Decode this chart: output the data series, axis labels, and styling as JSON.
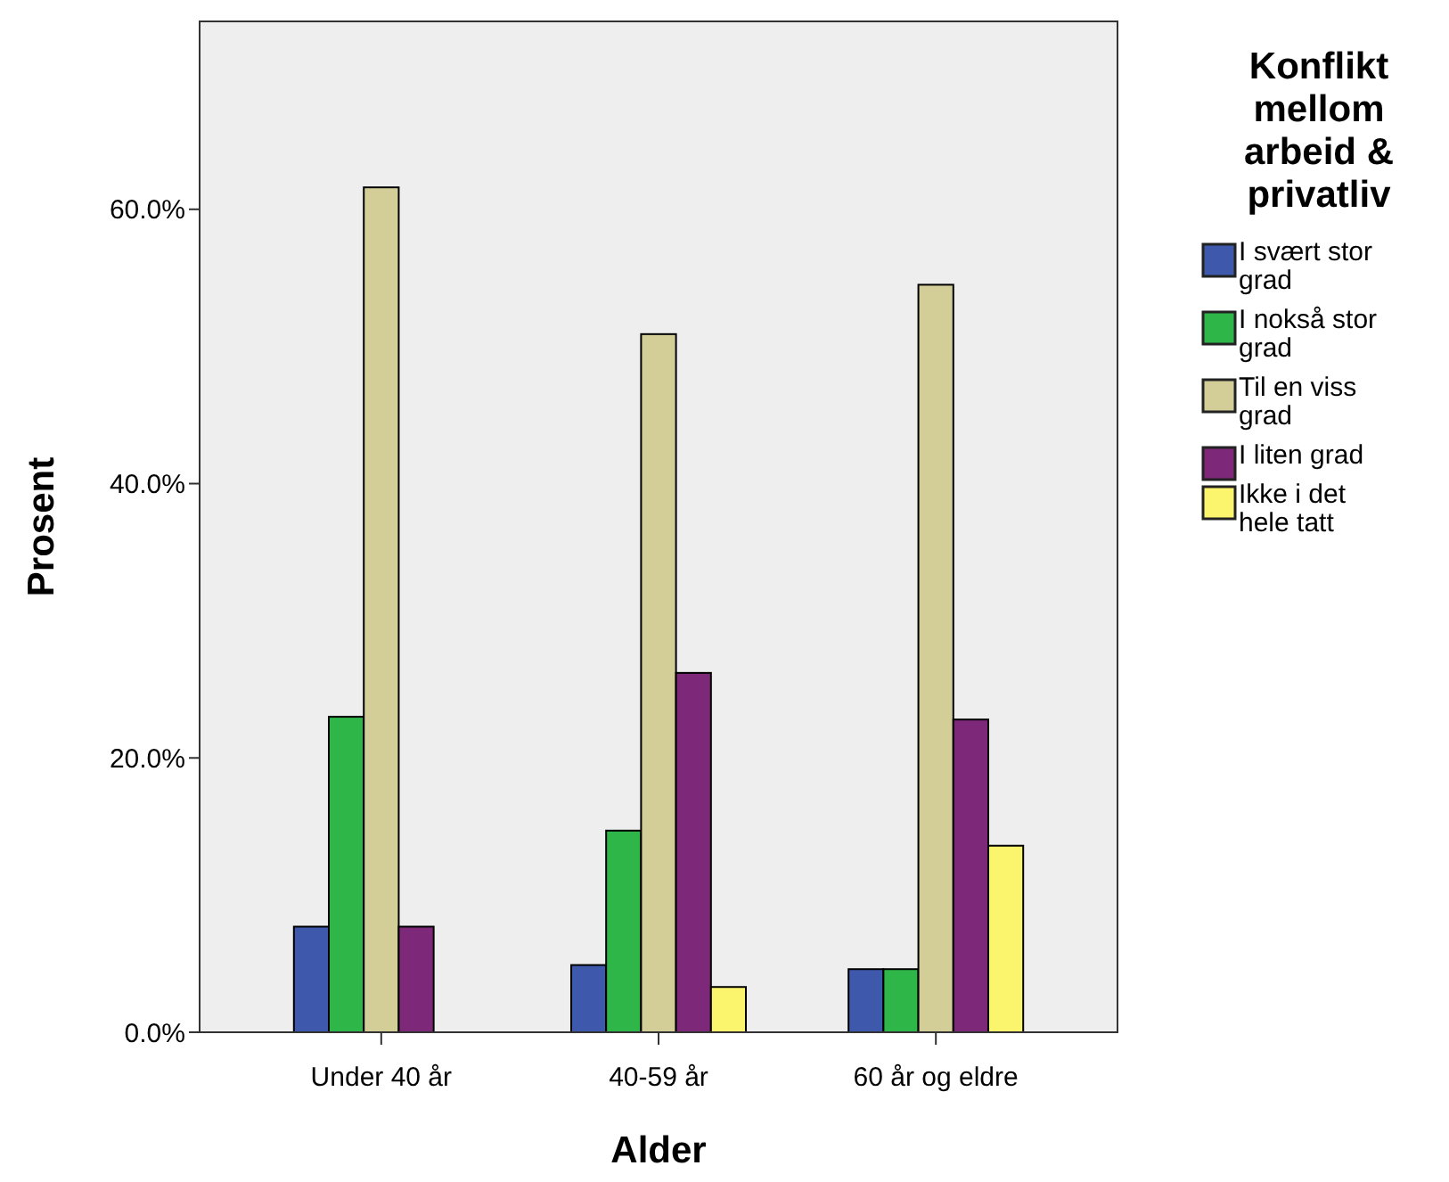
{
  "chart_data": {
    "type": "bar",
    "xlabel": "Alder",
    "ylabel": "Prosent",
    "legend_title": "Konflikt mellom arbeid & privatliv",
    "categories": [
      "Under 40 år",
      "40-59 år",
      "60 år og eldre"
    ],
    "series": [
      {
        "name": "I svært stor grad",
        "color": "#3e58ac",
        "values": [
          7.7,
          4.9,
          4.6
        ]
      },
      {
        "name": "I nokså stor grad",
        "color": "#2fb648",
        "values": [
          23.0,
          14.7,
          4.6
        ]
      },
      {
        "name": "Til en viss grad",
        "color": "#d3ce97",
        "values": [
          61.6,
          50.9,
          54.5
        ]
      },
      {
        "name": "I liten grad",
        "color": "#7d2878",
        "values": [
          7.7,
          26.2,
          22.8
        ]
      },
      {
        "name": "Ikke i det hele tatt",
        "color": "#fbf56e",
        "values": [
          0,
          3.3,
          13.6
        ]
      }
    ],
    "ylim": [
      0,
      73.7
    ],
    "yticks": [
      {
        "value": 0,
        "label": "0.0%"
      },
      {
        "value": 20,
        "label": "20.0%"
      },
      {
        "value": 40,
        "label": "40.0%"
      },
      {
        "value": 60,
        "label": "60.0%"
      }
    ],
    "grid": false,
    "legend": "right"
  }
}
